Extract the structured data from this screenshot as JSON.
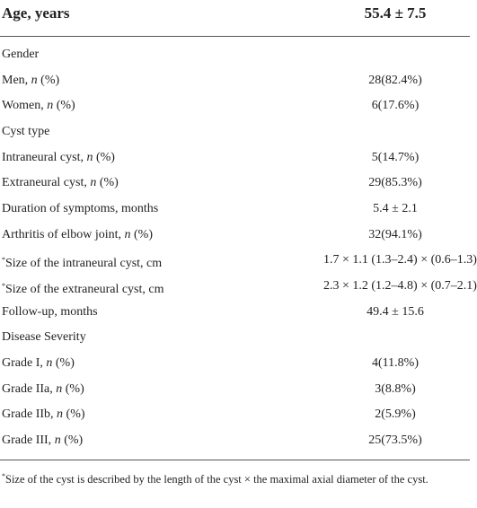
{
  "table": {
    "header": [
      "Age, years",
      "55.4 ± 7.5"
    ],
    "rows": [
      [
        "Gender"
      ],
      [
        "Men, n (%)",
        "28(82.4%)"
      ],
      [
        "Women, n (%)",
        "6(17.6%)"
      ],
      [
        "Cyst type"
      ],
      [
        "Intraneural cyst, n (%)",
        "5(14.7%)"
      ],
      [
        "Extraneural cyst, n (%)",
        "29(85.3%)"
      ],
      [
        "Duration of symptoms, months",
        "5.4 ± 2.1"
      ],
      [
        "Arthritis of elbow joint, n (%)",
        "32(94.1%)"
      ],
      [
        "*Size of the intraneural cyst, cm",
        "1.7 × 1.1 (1.3–2.4) × (0.6–1.3)"
      ],
      [
        "*Size of the extraneural cyst, cm",
        "2.3 × 1.2 (1.2–4.8) × (0.7–2.1)"
      ],
      [
        "Follow-up, months",
        "49.4 ± 15.6"
      ],
      [
        "Disease Severity"
      ],
      [
        "Grade I, n (%)",
        "4(11.8%)"
      ],
      [
        "Grade IIa, n (%)",
        "3(8.8%)"
      ],
      [
        "Grade IIb, n (%)",
        "2(5.9%)"
      ],
      [
        "Grade III, n (%)",
        "25(73.5%)"
      ]
    ],
    "footnote": "*Size of the cyst is described by the length of the cyst × the maximal axial diameter of the cyst."
  }
}
